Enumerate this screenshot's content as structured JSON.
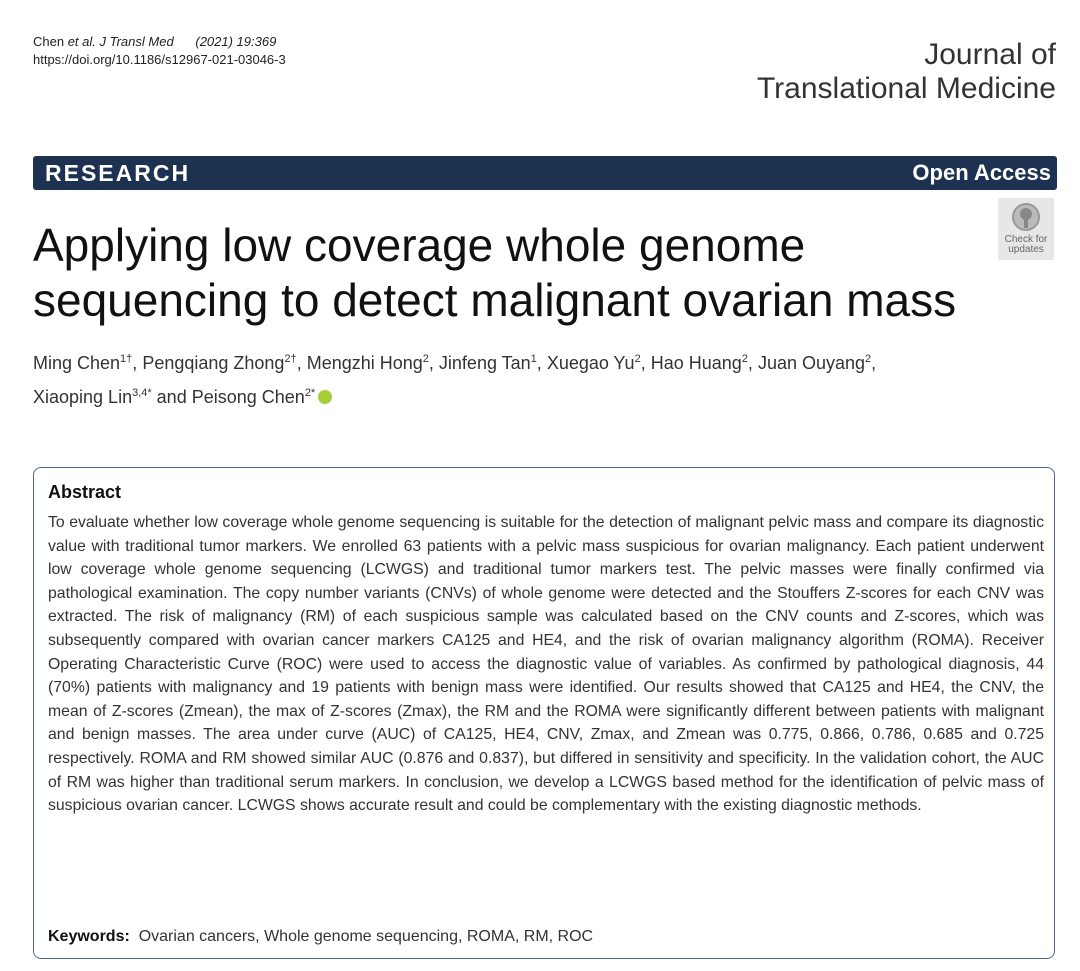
{
  "header": {
    "citation": {
      "author": "Chen",
      "etal": "et al.",
      "journal": "J Transl Med",
      "issue": "(2021) 19:369"
    },
    "doi": "https://doi.org/10.1186/s12967-021-03046-3",
    "journal_lines": [
      "Journal of",
      "Translational Medicine"
    ]
  },
  "banner": {
    "label": "RESEARCH",
    "access": "Open Access"
  },
  "badge": {
    "lines": [
      "Check for",
      "updates"
    ]
  },
  "title_lines": [
    "Applying low coverage whole genome",
    "sequencing to detect malignant ovarian mass"
  ],
  "authors": [
    {
      "name": "Ming Chen",
      "sup": "1†",
      "after": ", "
    },
    {
      "name": "Pengqiang Zhong",
      "sup": "2†",
      "after": ", "
    },
    {
      "name": "Mengzhi Hong",
      "sup": "2",
      "after": ", "
    },
    {
      "name": "Jinfeng Tan",
      "sup": "1",
      "after": ", "
    },
    {
      "name": "Xuegao Yu",
      "sup": "2",
      "after": ", "
    },
    {
      "name": "Hao Huang",
      "sup": "2",
      "after": ", "
    },
    {
      "name": "Juan Ouyang",
      "sup": "2",
      "after": ", "
    },
    {
      "name": "Xiaoping Lin",
      "sup": "3,4*",
      "after": " and "
    },
    {
      "name": "Peisong Chen",
      "sup": "2*"
    }
  ],
  "abstract": {
    "heading": "Abstract",
    "text": "To evaluate whether low coverage whole genome sequencing is suitable for the detection of malignant pelvic mass and compare its diagnostic value with traditional tumor markers. We enrolled 63 patients with a pelvic mass suspicious for ovarian malignancy. Each patient underwent low coverage whole genome sequencing (LCWGS) and traditional tumor markers test. The pelvic masses were finally confirmed via pathological examination. The copy number variants (CNVs) of whole genome were detected and the Stouffers Z-scores for each CNV was extracted. The risk of malignancy (RM) of each suspicious sample was calculated based on the CNV counts and Z-scores, which was subsequently compared with ovarian cancer markers CA125 and HE4, and the risk of ovarian malignancy algorithm (ROMA). Receiver Operating Characteristic Curve (ROC) were used to access the diagnostic value of variables. As confirmed by pathological diagnosis, 44 (70%) patients with malignancy and 19 patients with benign mass were identified. Our results showed that CA125 and HE4, the CNV, the mean of Z-scores (Zmean), the max of Z-scores (Zmax), the RM and the ROMA were significantly different between patients with malignant and benign masses. The area under curve (AUC) of CA125, HE4, CNV, Zmax, and Zmean was 0.775, 0.866, 0.786, 0.685 and 0.725 respectively. ROMA and RM showed similar AUC (0.876 and 0.837), but differed in sensitivity and specificity. In the validation cohort, the AUC of RM was higher than traditional serum markers. In conclusion, we develop a LCWGS based method for the identification of pelvic mass of suspicious ovarian cancer. LCWGS shows accurate result and could be complementary with the existing diagnostic methods.",
    "keywords_label": "Keywords:",
    "keywords": "Ovarian cancers, Whole genome sequencing, ROMA, RM, ROC"
  }
}
